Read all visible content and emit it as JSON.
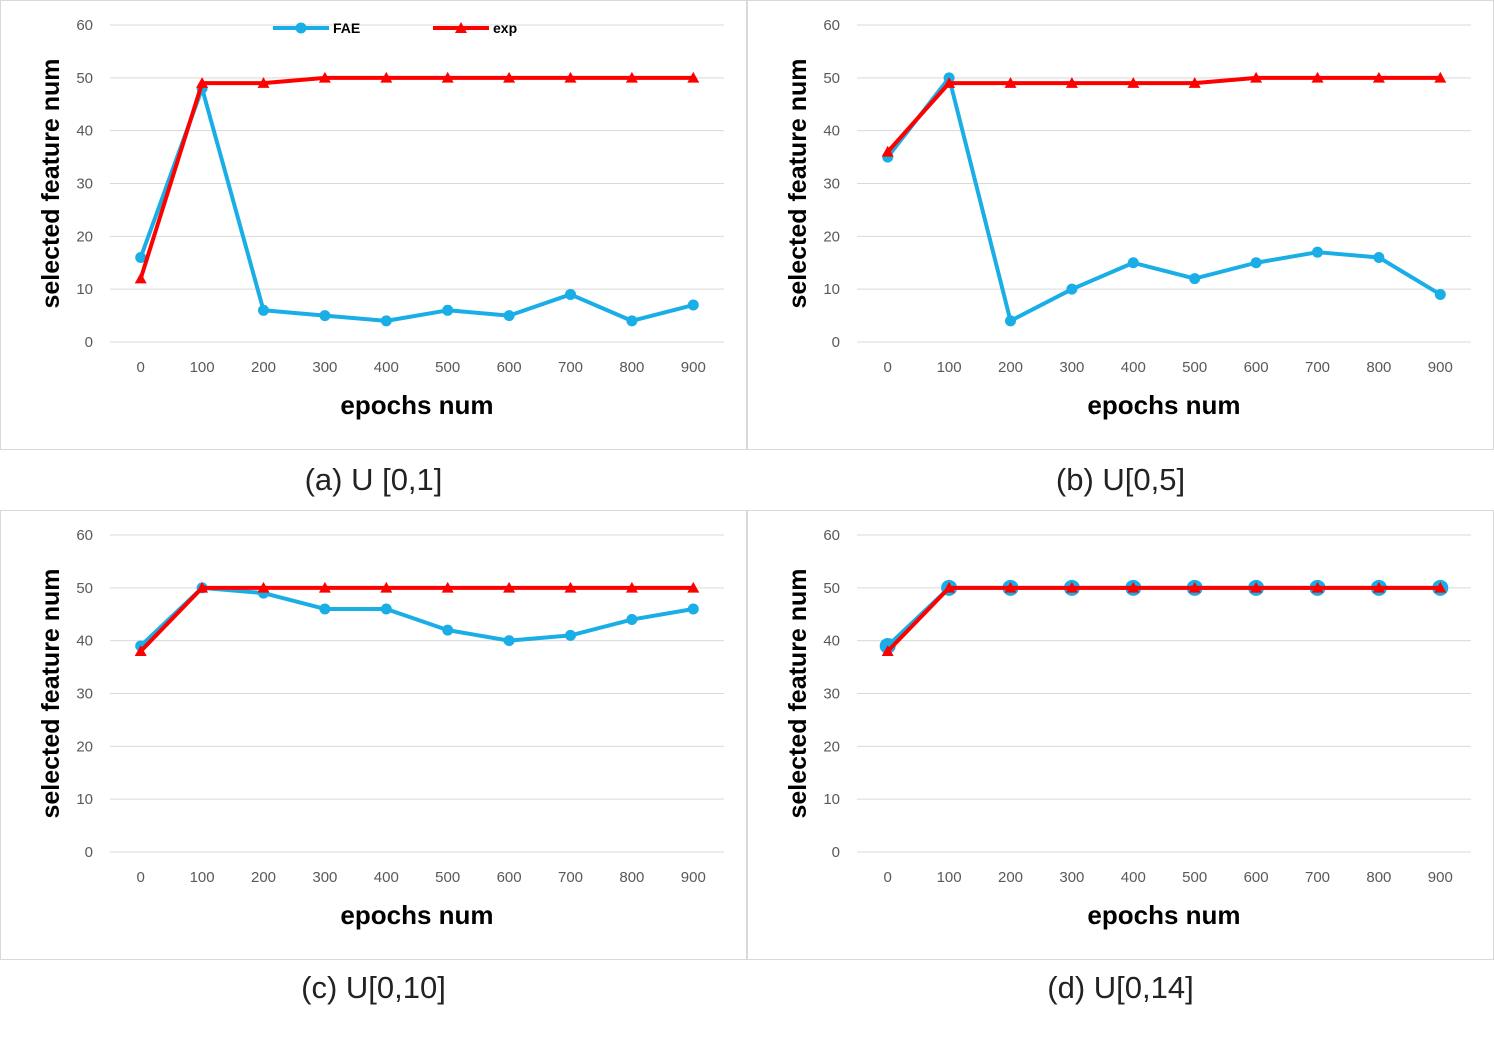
{
  "colors": {
    "fae": "#1aaee6",
    "exp": "#ff0000",
    "grid": "#d9d9d9"
  },
  "chart_data": [
    {
      "type": "line",
      "caption": "(a) U [0,1]",
      "xlabel": "epochs num",
      "ylabel": "selected feature num",
      "categories": [
        "0",
        "100",
        "200",
        "300",
        "400",
        "500",
        "600",
        "700",
        "800",
        "900"
      ],
      "ylim": [
        0,
        60
      ],
      "yticks": [
        "0",
        "10",
        "20",
        "30",
        "40",
        "50",
        "60"
      ],
      "grid": true,
      "legend": {
        "visible": true,
        "placement": "top"
      },
      "series": [
        {
          "name": "FAE",
          "marker": "circle",
          "values": [
            16,
            48,
            6,
            5,
            4,
            6,
            5,
            9,
            4,
            7
          ]
        },
        {
          "name": "exp",
          "marker": "triangle",
          "values": [
            12,
            49,
            49,
            50,
            50,
            50,
            50,
            50,
            50,
            50
          ]
        }
      ]
    },
    {
      "type": "line",
      "caption": "(b) U[0,5]",
      "xlabel": "epochs num",
      "ylabel": "selected feature num",
      "categories": [
        "0",
        "100",
        "200",
        "300",
        "400",
        "500",
        "600",
        "700",
        "800",
        "900"
      ],
      "ylim": [
        0,
        60
      ],
      "yticks": [
        "0",
        "10",
        "20",
        "30",
        "40",
        "50",
        "60"
      ],
      "grid": true,
      "legend": {
        "visible": false
      },
      "series": [
        {
          "name": "FAE",
          "marker": "circle",
          "values": [
            35,
            50,
            4,
            10,
            15,
            12,
            15,
            17,
            16,
            9
          ]
        },
        {
          "name": "exp",
          "marker": "triangle",
          "values": [
            36,
            49,
            49,
            49,
            49,
            49,
            50,
            50,
            50,
            50
          ]
        }
      ]
    },
    {
      "type": "line",
      "caption": "(c) U[0,10]",
      "xlabel": "epochs num",
      "ylabel": "selected feature num",
      "categories": [
        "0",
        "100",
        "200",
        "300",
        "400",
        "500",
        "600",
        "700",
        "800",
        "900"
      ],
      "ylim": [
        0,
        60
      ],
      "yticks": [
        "0",
        "10",
        "20",
        "30",
        "40",
        "50",
        "60"
      ],
      "grid": true,
      "legend": {
        "visible": false
      },
      "series": [
        {
          "name": "FAE",
          "marker": "circle",
          "values": [
            39,
            50,
            49,
            46,
            46,
            42,
            40,
            41,
            44,
            46
          ]
        },
        {
          "name": "exp",
          "marker": "triangle",
          "values": [
            38,
            50,
            50,
            50,
            50,
            50,
            50,
            50,
            50,
            50
          ]
        }
      ]
    },
    {
      "type": "line",
      "caption": "(d) U[0,14]",
      "xlabel": "epochs num",
      "ylabel": "selected feature num",
      "categories": [
        "0",
        "100",
        "200",
        "300",
        "400",
        "500",
        "600",
        "700",
        "800",
        "900"
      ],
      "ylim": [
        0,
        60
      ],
      "yticks": [
        "0",
        "10",
        "20",
        "30",
        "40",
        "50",
        "60"
      ],
      "grid": true,
      "legend": {
        "visible": false
      },
      "series": [
        {
          "name": "FAE",
          "marker": "circle-large",
          "values": [
            39,
            50,
            50,
            50,
            50,
            50,
            50,
            50,
            50,
            50
          ]
        },
        {
          "name": "exp",
          "marker": "triangle",
          "values": [
            38,
            50,
            50,
            50,
            50,
            50,
            50,
            50,
            50,
            50
          ]
        }
      ]
    }
  ]
}
